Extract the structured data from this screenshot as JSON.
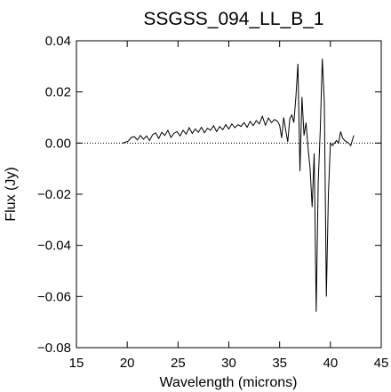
{
  "chart_data": {
    "type": "line",
    "title": "SSGSS_094_LL_B_1",
    "xlabel": "Wavelength (microns)",
    "ylabel": "Flux (Jy)",
    "xlim": [
      15,
      45
    ],
    "ylim": [
      -0.08,
      0.04
    ],
    "xticks": [
      15,
      20,
      25,
      30,
      35,
      40,
      45
    ],
    "yticks": [
      0.04,
      0.02,
      0.0,
      -0.02,
      -0.04,
      -0.06,
      -0.08
    ],
    "xtick_labels": [
      "15",
      "20",
      "25",
      "30",
      "35",
      "40",
      "45"
    ],
    "ytick_labels": [
      "0.04",
      "0.02",
      "0.00",
      "−0.02",
      "−0.04",
      "−0.06",
      "−0.08"
    ],
    "reference_line": {
      "y": 0.0,
      "style": "dotted"
    },
    "grid": false,
    "series": [
      {
        "color": "#000000",
        "x": [
          19.5,
          19.8,
          20.1,
          20.4,
          20.7,
          21.0,
          21.3,
          21.6,
          21.9,
          22.2,
          22.5,
          22.8,
          23.1,
          23.4,
          23.7,
          24.0,
          24.3,
          24.6,
          24.9,
          25.2,
          25.5,
          25.8,
          26.1,
          26.4,
          26.7,
          27.0,
          27.3,
          27.6,
          27.9,
          28.2,
          28.5,
          28.8,
          29.1,
          29.4,
          29.7,
          30.0,
          30.3,
          30.6,
          30.9,
          31.2,
          31.5,
          31.8,
          32.1,
          32.4,
          32.7,
          33.0,
          33.3,
          33.6,
          33.9,
          34.2,
          34.5,
          34.8,
          35.0,
          35.2,
          35.4,
          35.6,
          35.8,
          36.0,
          36.2,
          36.4,
          36.6,
          36.8,
          37.0,
          37.2,
          37.4,
          37.6,
          37.8,
          38.0,
          38.2,
          38.4,
          38.6,
          38.8,
          39.0,
          39.2,
          39.4,
          39.6,
          39.8,
          40.0,
          40.2,
          40.4,
          40.6,
          40.8,
          41.0,
          41.2,
          41.4,
          41.6,
          41.8,
          42.0,
          42.3
        ],
        "y": [
          0.0,
          0.0003,
          0.0008,
          0.0022,
          0.0025,
          0.0012,
          0.003,
          0.0015,
          0.0028,
          0.001,
          0.0033,
          0.004,
          0.0018,
          0.0042,
          0.003,
          0.005,
          0.0022,
          0.0038,
          0.0045,
          0.0028,
          0.005,
          0.0035,
          0.006,
          0.0038,
          0.0055,
          0.0042,
          0.0062,
          0.004,
          0.0058,
          0.005,
          0.0068,
          0.0045,
          0.0065,
          0.0052,
          0.0072,
          0.0055,
          0.0075,
          0.006,
          0.0072,
          0.0065,
          0.008,
          0.0062,
          0.0085,
          0.0068,
          0.0088,
          0.0075,
          0.0105,
          0.007,
          0.0098,
          0.008,
          0.0092,
          0.0085,
          0.007,
          0.002,
          0.01,
          0.005,
          0.0005,
          0.0095,
          0.011,
          0.008,
          0.018,
          0.031,
          -0.011,
          0.018,
          0.003,
          0.008,
          -0.002,
          -0.01,
          -0.025,
          -0.004,
          -0.066,
          -0.015,
          0.005,
          0.033,
          0.016,
          -0.06,
          -0.02,
          0.0,
          -0.001,
          0.0,
          0.001,
          0.0,
          0.0045,
          0.002,
          0.001,
          0.0005,
          0.0,
          -0.001,
          0.003
        ]
      }
    ]
  }
}
